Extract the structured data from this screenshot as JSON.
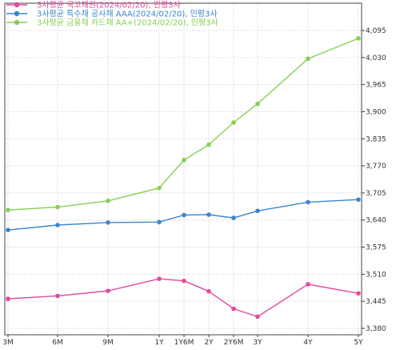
{
  "chart_data": {
    "type": "line",
    "title": "",
    "xlabel": "",
    "ylabel": "",
    "legend_position": "top-left",
    "grid": true,
    "x_ticks": [
      "3M",
      "6M",
      "9M",
      "1Y",
      "1Y6M",
      "2Y",
      "2Y6M",
      "3Y",
      "4Y",
      "5Y"
    ],
    "y_ticks": [
      "4,095",
      "4,030",
      "3,965",
      "3,900",
      "3,835",
      "3,770",
      "3,705",
      "3,640",
      "3,575",
      "3,510",
      "3,445",
      "3,380"
    ],
    "ylim": [
      3380,
      4095
    ],
    "x": [
      3,
      6,
      9,
      12,
      14,
      16,
      18,
      20,
      24,
      30
    ],
    "series": [
      {
        "name": "3사평균 국고채권(2024/02/20), 민평3사",
        "color": "#e5479d",
        "values": [
          3.451,
          3.458,
          3.47,
          3.499,
          3.494,
          3.469,
          3.427,
          3.408,
          3.486,
          3.464
        ]
      },
      {
        "name": "3사평균 특수채 공사채 AAA(2024/02/20), 민평3사",
        "color": "#3a86d0",
        "values": [
          3.616,
          3.628,
          3.634,
          3.635,
          3.652,
          3.653,
          3.645,
          3.662,
          3.683,
          3.689
        ]
      },
      {
        "name": "3사평균 금융채 카드채 AA+(2024/02/20), 민평3사",
        "color": "#86cf52",
        "values": [
          3.664,
          3.671,
          3.686,
          3.717,
          3.784,
          3.821,
          3.874,
          3.919,
          4.027,
          4.076
        ]
      }
    ]
  }
}
